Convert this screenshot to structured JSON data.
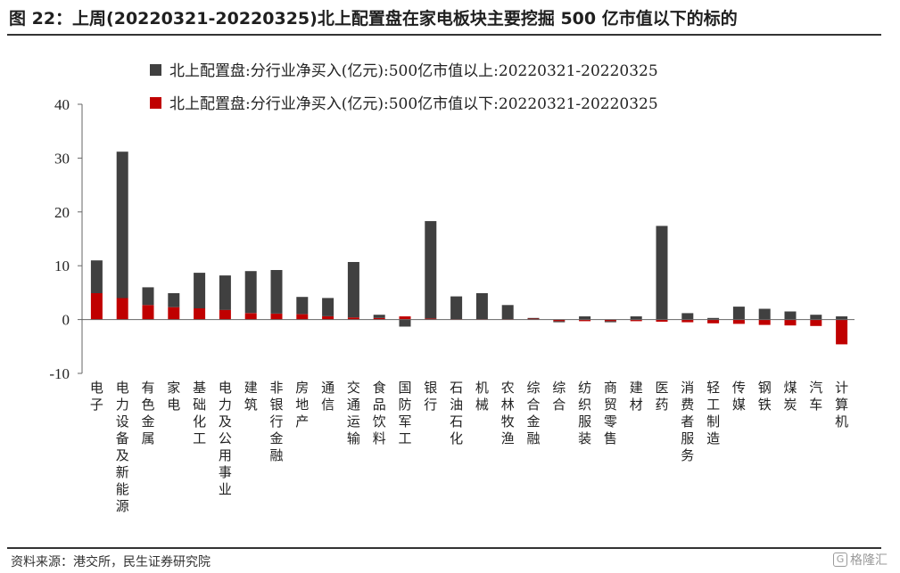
{
  "header": {
    "title": "图 22：上周(20220321-20220325)北上配置盘在家电板块主要挖掘 500 亿市值以下的标的"
  },
  "footer": {
    "source": "资料来源：港交所，民生证券研究院",
    "watermark": "格隆汇",
    "watermark_icon": "G"
  },
  "colors": {
    "above": "#404040",
    "below": "#c00000"
  },
  "chart_data": {
    "type": "bar",
    "stacked": true,
    "categories": [
      "电子",
      "电力设备及新能源",
      "有色金属",
      "家电",
      "基础化工",
      "电力及公用事业",
      "建筑",
      "非银行金融",
      "房地产",
      "通信",
      "交通运输",
      "食品饮料",
      "国防军工",
      "银行",
      "石油石化",
      "机械",
      "农林牧渔",
      "综合金融",
      "综合",
      "纺织服装",
      "商贸零售",
      "建材",
      "医药",
      "消费者服务",
      "轻工制造",
      "传媒",
      "钢铁",
      "煤炭",
      "汽车",
      "计算机"
    ],
    "series": [
      {
        "name": "北上配置盘:分行业净买入(亿元):500亿市值以上:20220321-20220325",
        "color": "#404040",
        "values": [
          6.1,
          27.2,
          3.3,
          2.6,
          6.6,
          6.4,
          7.8,
          8.1,
          3.2,
          3.4,
          10.3,
          0.6,
          -1.3,
          18.1,
          4.2,
          4.8,
          2.6,
          0.1,
          -0.2,
          0.6,
          -0.2,
          0.6,
          17.4,
          1.2,
          0.3,
          2.4,
          2.0,
          1.5,
          0.9,
          0.6
        ]
      },
      {
        "name": "北上配置盘:分行业净买入(亿元):500亿市值以下:20220321-20220325",
        "color": "#c00000",
        "values": [
          4.9,
          4.0,
          2.7,
          2.3,
          2.1,
          1.8,
          1.2,
          1.1,
          1.0,
          0.6,
          0.4,
          0.3,
          0.6,
          0.2,
          0.1,
          0.1,
          0.1,
          0.2,
          -0.3,
          -0.3,
          -0.3,
          -0.3,
          -0.4,
          -0.5,
          -0.7,
          -0.8,
          -1.0,
          -1.1,
          -1.2,
          -4.6
        ]
      }
    ],
    "yticks": [
      -10,
      0,
      10,
      20,
      30,
      40
    ],
    "ylim": [
      -10,
      40
    ],
    "legend_position": "top-center",
    "grid": false,
    "xlabel": "",
    "ylabel": ""
  }
}
